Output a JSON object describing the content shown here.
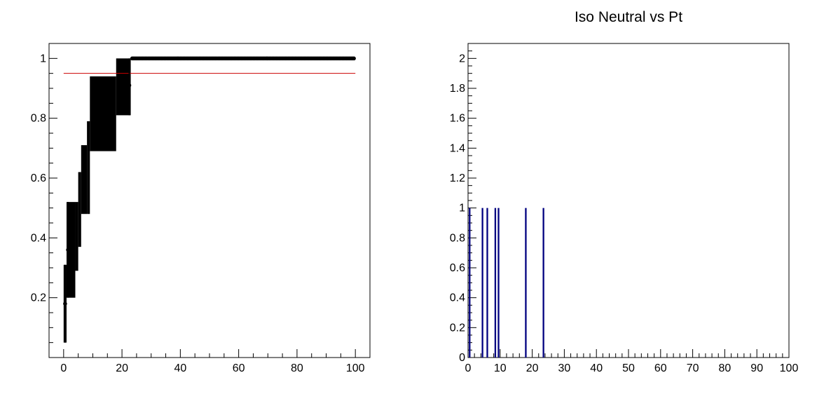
{
  "chart_data": [
    {
      "type": "scatter",
      "title": "",
      "xlabel": "",
      "ylabel": "",
      "xlim": [
        -5,
        105
      ],
      "ylim": [
        0,
        1.05
      ],
      "x_ticks": [
        "0",
        "20",
        "40",
        "60",
        "80",
        "100"
      ],
      "y_ticks": [
        "0.2",
        "0.4",
        "0.6",
        "0.8",
        "1"
      ],
      "grid": false,
      "reference_line": {
        "y": 0.95,
        "x_range": [
          0,
          100
        ],
        "color": "#cc0000"
      },
      "error_bands": [
        {
          "x_range": [
            0,
            1
          ],
          "y_range": [
            0.05,
            0.31
          ]
        },
        {
          "x_range": [
            1,
            4
          ],
          "y_range": [
            0.2,
            0.52
          ]
        },
        {
          "x_range": [
            4,
            5
          ],
          "y_range": [
            0.29,
            0.52
          ]
        },
        {
          "x_range": [
            5,
            6
          ],
          "y_range": [
            0.37,
            0.62
          ]
        },
        {
          "x_range": [
            6,
            8
          ],
          "y_range": [
            0.48,
            0.71
          ]
        },
        {
          "x_range": [
            8,
            9
          ],
          "y_range": [
            0.48,
            0.79
          ]
        },
        {
          "x_range": [
            9,
            18
          ],
          "y_range": [
            0.69,
            0.94
          ]
        },
        {
          "x_range": [
            18,
            23
          ],
          "y_range": [
            0.81,
            1.0
          ]
        }
      ],
      "series": [
        {
          "points": [
            {
              "x": 0.5,
              "y": 0.18,
              "yerr": [
                0.05,
                0.31
              ]
            },
            {
              "x": 1.5,
              "y": 0.36,
              "yerr": [
                0.2,
                0.52
              ]
            },
            {
              "x": 22.5,
              "y": 0.91,
              "yerr": [
                0.81,
                1.0
              ]
            }
          ],
          "plateau": {
            "x_from": 23.5,
            "x_to": 99.5,
            "step": 0.5,
            "y": 1.0
          }
        }
      ],
      "color": "#000000"
    },
    {
      "type": "bar",
      "title": "Iso Neutral vs Pt",
      "xlabel": "",
      "ylabel": "",
      "xlim": [
        0,
        100
      ],
      "ylim": [
        0,
        2.1
      ],
      "x_ticks": [
        "0",
        "10",
        "20",
        "30",
        "40",
        "50",
        "60",
        "70",
        "80",
        "90",
        "100"
      ],
      "y_ticks": [
        "0",
        "0.2",
        "0.4",
        "0.6",
        "0.8",
        "1",
        "1.2",
        "1.4",
        "1.6",
        "1.8",
        "2"
      ],
      "grid": false,
      "bin_width": 0.5,
      "bins": [
        {
          "x": 0.5,
          "value": 1
        },
        {
          "x": 4.5,
          "value": 1
        },
        {
          "x": 6,
          "value": 1
        },
        {
          "x": 8.5,
          "value": 1
        },
        {
          "x": 9.5,
          "value": 1
        },
        {
          "x": 18,
          "value": 1
        },
        {
          "x": 23.5,
          "value": 1
        }
      ],
      "color": "#000080"
    }
  ]
}
